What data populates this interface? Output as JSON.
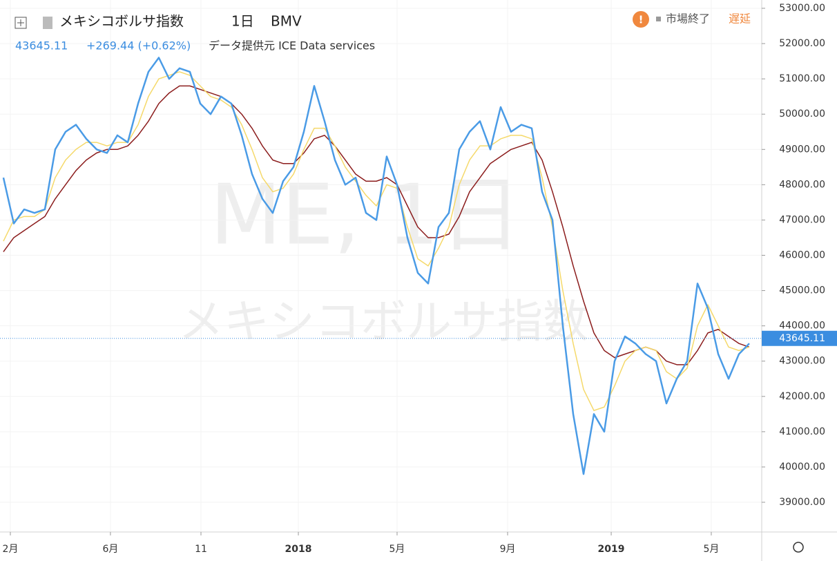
{
  "chart_data": {
    "type": "line",
    "title": "メキシコボルサ指数",
    "interval": "1日",
    "exchange": "BMV",
    "last_price_label": "43645.11",
    "last_price": 43645.11,
    "change_label": "+269.44 (+0.62%)",
    "source": "データ提供元 ICE Data services",
    "status": "市場終了",
    "delay": "遅延",
    "watermark_symbol": "ME, 1日",
    "watermark_name": "メキシコボルサ指数",
    "xlim": [
      -0.33,
      73.2
    ],
    "xticks": [
      {
        "value": 0.67,
        "label": "2月"
      },
      {
        "value": 10.33,
        "label": "6月"
      },
      {
        "value": 19.07,
        "label": "11"
      },
      {
        "value": 28.47,
        "label": "2018"
      },
      {
        "value": 38,
        "label": "5月"
      },
      {
        "value": 48.67,
        "label": "9月"
      },
      {
        "value": 58.67,
        "label": "2019"
      },
      {
        "value": 68.33,
        "label": "5月"
      }
    ],
    "ylim": [
      38158,
      53235
    ],
    "yticks": [
      {
        "value": 39000,
        "label": "39000.00"
      },
      {
        "value": 40000,
        "label": "40000.00"
      },
      {
        "value": 41000,
        "label": "41000.00"
      },
      {
        "value": 42000,
        "label": "42000.00"
      },
      {
        "value": 43000,
        "label": "43000.00"
      },
      {
        "value": 44000,
        "label": "44000.00"
      },
      {
        "value": 45000,
        "label": "45000.00"
      },
      {
        "value": 46000,
        "label": "46000.00"
      },
      {
        "value": 47000,
        "label": "47000.00"
      },
      {
        "value": 48000,
        "label": "48000.00"
      },
      {
        "value": 49000,
        "label": "49000.00"
      },
      {
        "value": 50000,
        "label": "50000.00"
      },
      {
        "value": 51000,
        "label": "51000.00"
      },
      {
        "value": 52000,
        "label": "52000.00"
      },
      {
        "value": 53000,
        "label": "53000.00"
      }
    ],
    "series": [
      {
        "color": "#8b1c1c",
        "width": 1.5,
        "values": [
          46100,
          46500,
          46700,
          46900,
          47100,
          47600,
          48000,
          48400,
          48700,
          48900,
          49000,
          49000,
          49100,
          49400,
          49800,
          50300,
          50600,
          50800,
          50800,
          50700,
          50600,
          50500,
          50300,
          50000,
          49600,
          49100,
          48700,
          48600,
          48600,
          48900,
          49300,
          49400,
          49100,
          48700,
          48300,
          48100,
          48100,
          48200,
          48000,
          47400,
          46800,
          46500,
          46500,
          46600,
          47100,
          47800,
          48200,
          48600,
          48800,
          49000,
          49100,
          49200,
          48700,
          47800,
          46800,
          45700,
          44700,
          43800,
          43300,
          43100,
          43200,
          43300,
          43400,
          43300,
          43000,
          42900,
          42900,
          43300,
          43800,
          43900,
          43700,
          43500,
          43400
        ]
      },
      {
        "color": "#f5d96a",
        "width": 1.5,
        "values": [
          46400,
          47000,
          47100,
          47100,
          47300,
          48200,
          48700,
          49000,
          49200,
          49200,
          49100,
          49200,
          49200,
          49700,
          50500,
          51000,
          51100,
          51200,
          51100,
          50800,
          50500,
          50400,
          50200,
          49700,
          49000,
          48200,
          47800,
          47900,
          48300,
          49000,
          49600,
          49600,
          49100,
          48500,
          48100,
          47700,
          47400,
          48000,
          47900,
          46800,
          45900,
          45700,
          46200,
          46800,
          48000,
          48700,
          49100,
          49100,
          49300,
          49400,
          49400,
          49300,
          48200,
          46800,
          45000,
          43500,
          42200,
          41600,
          41700,
          42300,
          43000,
          43300,
          43400,
          43300,
          42700,
          42500,
          42800,
          44000,
          44600,
          44000,
          43400,
          43300,
          43400
        ]
      },
      {
        "color": "#4a9be6",
        "width": 2.5,
        "values": [
          48200,
          46900,
          47300,
          47200,
          47300,
          49000,
          49500,
          49700,
          49300,
          49000,
          48900,
          49400,
          49200,
          50300,
          51200,
          51600,
          51000,
          51300,
          51200,
          50300,
          50000,
          50500,
          50300,
          49400,
          48300,
          47600,
          47200,
          48100,
          48500,
          49500,
          50800,
          49800,
          48700,
          48000,
          48200,
          47200,
          47000,
          48800,
          48000,
          46500,
          45500,
          45200,
          46800,
          47200,
          49000,
          49500,
          49800,
          49000,
          50200,
          49500,
          49700,
          49600,
          47800,
          47000,
          44000,
          41500,
          39800,
          41500,
          41000,
          43000,
          43700,
          43500,
          43200,
          43000,
          41800,
          42500,
          43000,
          45200,
          44500,
          43200,
          42500,
          43200,
          43500
        ]
      }
    ]
  }
}
